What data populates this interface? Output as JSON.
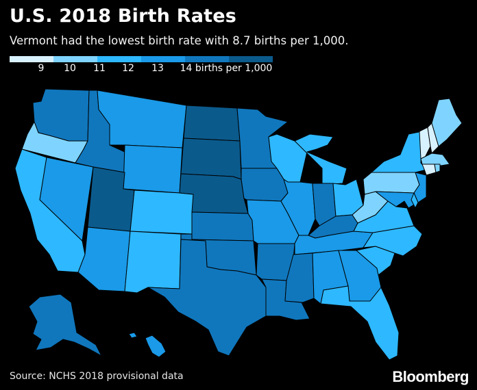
{
  "title": "U.S. 2018 Birth Rates",
  "subtitle": "Vermont had the lowest birth rate with 8.7 births per 1,000.",
  "legend": {
    "labels": [
      "9",
      "10",
      "11",
      "12",
      "13",
      "14 births per 1,000"
    ],
    "colors": {
      "9": "#d8f1ff",
      "10": "#7fd4ff",
      "11": "#2eb8ff",
      "12": "#1a9ae8",
      "13": "#1077bd",
      "14": "#0b5a8c"
    }
  },
  "source": "Source: NCHS 2018 provisional data",
  "brand": "Bloomberg",
  "map_data": {
    "WA": "13",
    "OR": "10",
    "CA": "11",
    "NV": "12",
    "ID": "13",
    "MT": "12",
    "WY": "12",
    "UT": "14",
    "AZ": "12",
    "CO": "11",
    "NM": "11",
    "ND": "14",
    "SD": "14",
    "NE": "14",
    "KS": "13",
    "OK": "13",
    "TX": "13",
    "MN": "13",
    "IA": "13",
    "MO": "12",
    "AR": "13",
    "LA": "13",
    "WI": "11",
    "IL": "12",
    "MI": "11",
    "IN": "13",
    "OH": "11",
    "KY": "13",
    "TN": "12",
    "MS": "13",
    "AL": "12",
    "GA": "12",
    "FL": "11",
    "SC": "11",
    "NC": "11",
    "VA": "11",
    "WV": "10",
    "PA": "10",
    "NY": "11",
    "VT": "9",
    "NH": "9",
    "ME": "10",
    "MA": "10",
    "CT": "9",
    "RI": "10",
    "NJ": "12",
    "DE": "11",
    "MD": "12",
    "AK": "13",
    "HI": "12"
  }
}
